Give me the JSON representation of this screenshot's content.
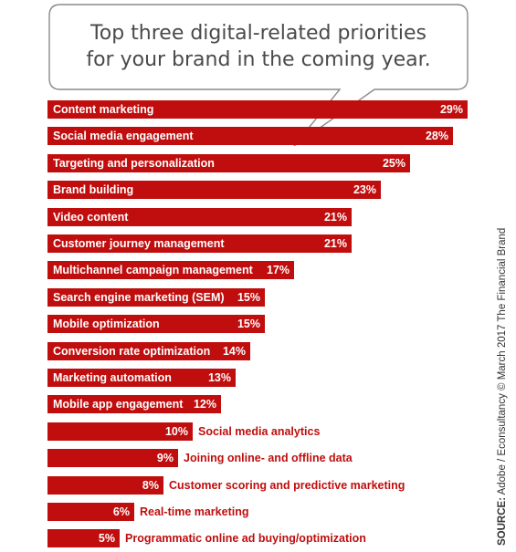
{
  "chart_data": {
    "type": "bar",
    "orientation": "horizontal",
    "title": "Top three digital-related priorities for your brand in the coming year.",
    "title_lines": [
      "Top three digital-related priorities",
      "for your brand in the coming year."
    ],
    "categories": [
      "Content marketing",
      "Social media engagement",
      "Targeting and personalization",
      "Brand building",
      "Video content",
      "Customer journey management",
      "Multichannel campaign management",
      "Search engine marketing (SEM)",
      "Mobile optimization",
      "Conversion rate optimization",
      "Marketing automation",
      "Mobile app engagement",
      "Social media analytics",
      "Joining online- and offline data",
      "Customer scoring and predictive marketing",
      "Real-time marketing",
      "Programmatic online ad buying/optimization"
    ],
    "values": [
      29,
      28,
      25,
      23,
      21,
      21,
      17,
      15,
      15,
      14,
      13,
      12,
      10,
      9,
      8,
      6,
      5
    ],
    "value_labels": [
      "29%",
      "28%",
      "25%",
      "23%",
      "21%",
      "21%",
      "17%",
      "15%",
      "15%",
      "14%",
      "13%",
      "12%",
      "10%",
      "9%",
      "8%",
      "6%",
      "5%"
    ],
    "xlim": [
      0,
      29
    ],
    "bar_color": "#c00d0d",
    "grid": false,
    "legend": "none"
  },
  "source": {
    "label": "SOURCE:",
    "text": "Adobe / Econsultancy © March 2017 The Financial Brand"
  }
}
